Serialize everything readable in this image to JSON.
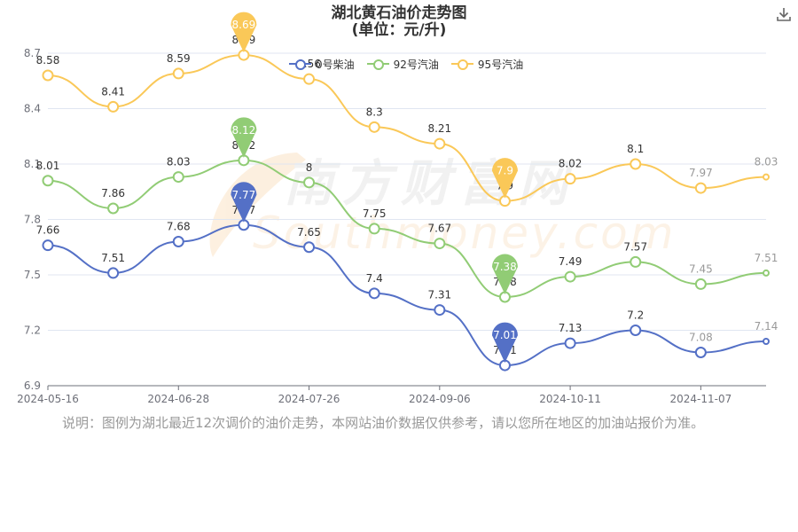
{
  "title": "湖北黄石油价走势图",
  "subtitle": "(单位：元/升)",
  "download_icon": "download-icon",
  "note": "说明：图例为湖北最近12次调价的油价走势，本网站油价数据仅供参考，请以您所在地区的加油站报价为准。",
  "watermark": {
    "cn": "南方财富网",
    "en": "Southmoney.com"
  },
  "colors": {
    "diesel": "#5470c6",
    "gas92": "#91cc75",
    "gas95": "#fac858",
    "grid": "#e0e6f1",
    "axis": "#333333",
    "label": "#333333",
    "fadedLabel": "#999999"
  },
  "legend": [
    {
      "name": "0号柴油",
      "color": "#5470c6"
    },
    {
      "name": "92号汽油",
      "color": "#91cc75"
    },
    {
      "name": "95号汽油",
      "color": "#fac858"
    }
  ],
  "chart_data": {
    "type": "line",
    "title": "湖北黄石油价走势图",
    "subtitle": "(单位：元/升)",
    "x_tick_labels": [
      "2024-05-16",
      "2024-06-28",
      "2024-07-26",
      "2024-09-06",
      "2024-10-11",
      "2024-11-07"
    ],
    "x_tick_index": [
      0,
      2,
      4,
      6,
      8,
      10
    ],
    "ylim": [
      6.9,
      8.7
    ],
    "yticks": [
      "6.9",
      "7.2",
      "7.5",
      "7.8",
      "8.1",
      "8.4",
      "8.7"
    ],
    "grid": true,
    "legend_position": "top",
    "point_count": 12,
    "series": [
      {
        "name": "0号柴油",
        "color": "#5470c6",
        "values": [
          7.66,
          7.51,
          7.68,
          7.77,
          7.65,
          7.4,
          7.31,
          7.01,
          7.13,
          7.2,
          7.08,
          7.14
        ],
        "max_marker": 7.77,
        "min_marker": 7.01,
        "max_index": 3,
        "min_index": 7
      },
      {
        "name": "92号汽油",
        "color": "#91cc75",
        "values": [
          8.01,
          7.86,
          8.03,
          8.12,
          8.0,
          7.75,
          7.67,
          7.38,
          7.49,
          7.57,
          7.45,
          7.51
        ],
        "value_labels": [
          "8.01",
          "7.86",
          "8.03",
          "8.12",
          "8",
          "7.75",
          "7.67",
          "7.38",
          "7.49",
          "7.57",
          "7.45",
          "7.51"
        ],
        "max_marker": 8.12,
        "min_marker": 7.38,
        "max_index": 3,
        "min_index": 7
      },
      {
        "name": "95号汽油",
        "color": "#fac858",
        "values": [
          8.58,
          8.41,
          8.59,
          8.69,
          8.56,
          8.3,
          8.21,
          7.9,
          8.02,
          8.1,
          7.97,
          8.03
        ],
        "max_marker": 8.69,
        "min_marker": 7.9,
        "max_index": 3,
        "min_index": 7
      }
    ]
  }
}
